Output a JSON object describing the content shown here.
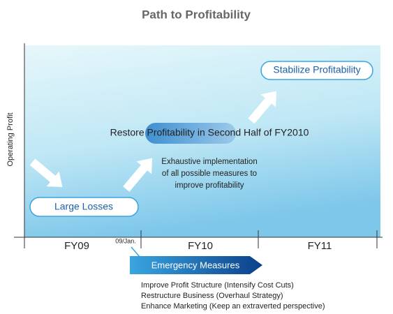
{
  "title": "Path to Profitability",
  "y_axis_label": "Operating Profit",
  "periods": [
    "FY09",
    "FY10",
    "FY11"
  ],
  "date_marker": "09/Jan.",
  "start": "Large Losses",
  "milestone": "Restore Profitability in Second Half of FY2010",
  "goal": "Stabilize Profitability",
  "note": [
    "Exhaustive implementation",
    "of all possible measures to",
    "improve profitability"
  ],
  "emergency": {
    "title": "Emergency Measures",
    "measures": [
      "Improve Profit Structure (Intensify Cost Cuts)",
      "Restructure Business (Overhaul Strategy)",
      "Enhance Marketing (Keep an extraverted perspective)"
    ]
  }
}
